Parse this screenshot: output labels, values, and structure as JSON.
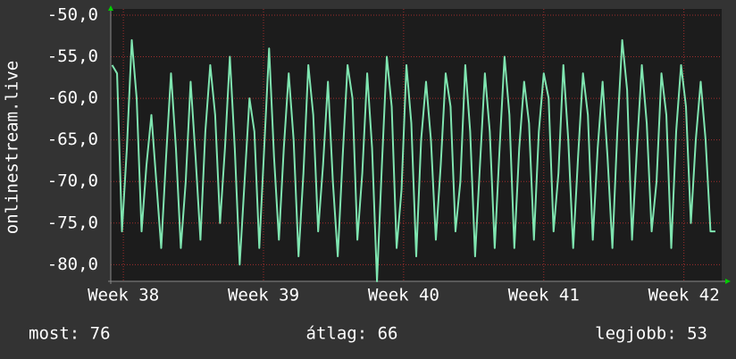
{
  "chart_data": {
    "type": "line",
    "y_label": "onlinestream.live",
    "x": [
      37.92,
      37.955,
      37.99,
      38.025,
      38.06,
      38.095,
      38.13,
      38.165,
      38.2,
      38.235,
      38.27,
      38.305,
      38.34,
      38.375,
      38.41,
      38.445,
      38.48,
      38.515,
      38.55,
      38.585,
      38.62,
      38.655,
      38.69,
      38.725,
      38.76,
      38.795,
      38.83,
      38.865,
      38.9,
      38.935,
      38.97,
      39.005,
      39.04,
      39.075,
      39.11,
      39.145,
      39.18,
      39.215,
      39.25,
      39.285,
      39.32,
      39.355,
      39.39,
      39.425,
      39.46,
      39.495,
      39.53,
      39.565,
      39.6,
      39.635,
      39.67,
      39.705,
      39.74,
      39.775,
      39.81,
      39.845,
      39.88,
      39.915,
      39.95,
      39.985,
      40.02,
      40.055,
      40.09,
      40.125,
      40.16,
      40.195,
      40.23,
      40.265,
      40.3,
      40.335,
      40.37,
      40.405,
      40.44,
      40.475,
      40.51,
      40.545,
      40.58,
      40.615,
      40.65,
      40.685,
      40.72,
      40.755,
      40.79,
      40.825,
      40.86,
      40.895,
      40.93,
      40.965,
      41.0,
      41.035,
      41.07,
      41.105,
      41.14,
      41.175,
      41.21,
      41.245,
      41.28,
      41.315,
      41.35,
      41.385,
      41.42,
      41.455,
      41.49,
      41.525,
      41.56,
      41.595,
      41.63,
      41.665,
      41.7,
      41.735,
      41.77,
      41.805,
      41.84,
      41.875,
      41.91,
      41.945,
      41.98,
      42.015,
      42.05,
      42.085,
      42.12,
      42.155,
      42.19,
      42.225
    ],
    "series": [
      {
        "color": "#7fe5b0",
        "values": [
          -56,
          -57,
          -76,
          -66,
          -53,
          -60,
          -76,
          -68,
          -62,
          -70,
          -78,
          -67,
          -57,
          -66,
          -78,
          -70,
          -58,
          -67,
          -77,
          -64,
          -56,
          -62,
          -75,
          -66,
          -55,
          -66,
          -80,
          -70,
          -60,
          -64,
          -78,
          -66,
          -54,
          -67,
          -77,
          -66,
          -57,
          -65,
          -79,
          -69,
          -56,
          -62,
          -76,
          -68,
          -58,
          -70,
          -79,
          -67,
          -56,
          -60,
          -77,
          -69,
          -57,
          -66,
          -82,
          -68,
          -55,
          -61,
          -78,
          -71,
          -56,
          -63,
          -79,
          -65,
          -58,
          -65,
          -77,
          -68,
          -57,
          -61,
          -76,
          -70,
          -56,
          -64,
          -79,
          -68,
          -57,
          -64,
          -78,
          -66,
          -55,
          -62,
          -78,
          -66,
          -58,
          -63,
          -77,
          -64,
          -57,
          -60,
          -76,
          -69,
          -56,
          -65,
          -78,
          -67,
          -57,
          -62,
          -77,
          -66,
          -58,
          -67,
          -78,
          -64,
          -53,
          -59,
          -77,
          -66,
          -56,
          -63,
          -76,
          -70,
          -57,
          -62,
          -78,
          -64,
          -56,
          -61,
          -75,
          -65,
          -58,
          -65,
          -76,
          -76
        ]
      }
    ],
    "xlim": [
      37.91,
      42.27
    ],
    "ylim": [
      -82,
      -49.25
    ],
    "xticks": [
      {
        "value": 38,
        "label": "Week 38"
      },
      {
        "value": 39,
        "label": "Week 39"
      },
      {
        "value": 40,
        "label": "Week 40"
      },
      {
        "value": 41,
        "label": "Week 41"
      },
      {
        "value": 42,
        "label": "Week 42"
      }
    ],
    "yticks": [
      {
        "value": -50,
        "label": "-50,0"
      },
      {
        "value": -55,
        "label": "-55,0"
      },
      {
        "value": -60,
        "label": "-60,0"
      },
      {
        "value": -65,
        "label": "-65,0"
      },
      {
        "value": -70,
        "label": "-70,0"
      },
      {
        "value": -75,
        "label": "-75,0"
      },
      {
        "value": -80,
        "label": "-80,0"
      }
    ],
    "grid": true,
    "stats": {
      "current": "most: 76",
      "average": "átlag: 66",
      "best": "legjobb: 53"
    }
  }
}
